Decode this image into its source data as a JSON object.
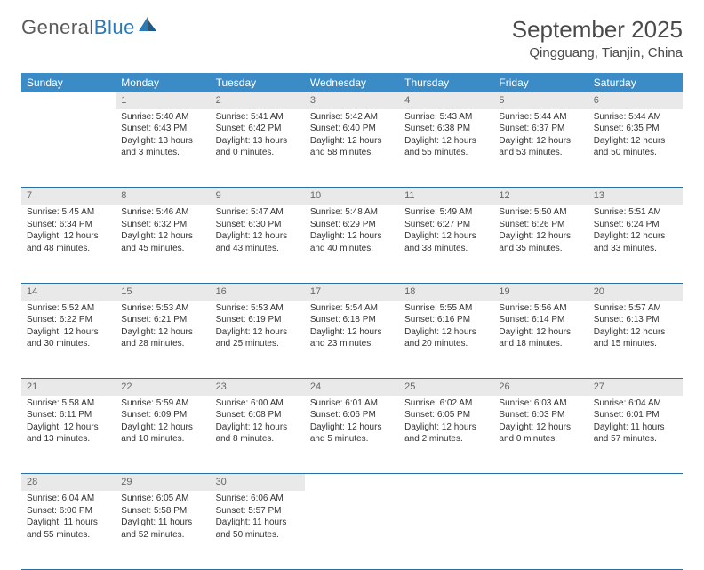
{
  "logo": {
    "text_general": "General",
    "text_blue": "Blue"
  },
  "header": {
    "month_title": "September 2025",
    "location": "Qingguang, Tianjin, China"
  },
  "colors": {
    "header_bg": "#3b8bc7",
    "header_text": "#ffffff",
    "daynum_bg": "#e9e9e9",
    "daynum_text": "#666666",
    "row_divider": "#2a6fa0",
    "body_text": "#333333",
    "logo_gray": "#5a5a5a",
    "logo_blue": "#2a7ab8"
  },
  "weekdays": [
    "Sunday",
    "Monday",
    "Tuesday",
    "Wednesday",
    "Thursday",
    "Friday",
    "Saturday"
  ],
  "weeks": [
    [
      null,
      {
        "d": "1",
        "sr": "Sunrise: 5:40 AM",
        "ss": "Sunset: 6:43 PM",
        "dl1": "Daylight: 13 hours",
        "dl2": "and 3 minutes."
      },
      {
        "d": "2",
        "sr": "Sunrise: 5:41 AM",
        "ss": "Sunset: 6:42 PM",
        "dl1": "Daylight: 13 hours",
        "dl2": "and 0 minutes."
      },
      {
        "d": "3",
        "sr": "Sunrise: 5:42 AM",
        "ss": "Sunset: 6:40 PM",
        "dl1": "Daylight: 12 hours",
        "dl2": "and 58 minutes."
      },
      {
        "d": "4",
        "sr": "Sunrise: 5:43 AM",
        "ss": "Sunset: 6:38 PM",
        "dl1": "Daylight: 12 hours",
        "dl2": "and 55 minutes."
      },
      {
        "d": "5",
        "sr": "Sunrise: 5:44 AM",
        "ss": "Sunset: 6:37 PM",
        "dl1": "Daylight: 12 hours",
        "dl2": "and 53 minutes."
      },
      {
        "d": "6",
        "sr": "Sunrise: 5:44 AM",
        "ss": "Sunset: 6:35 PM",
        "dl1": "Daylight: 12 hours",
        "dl2": "and 50 minutes."
      }
    ],
    [
      {
        "d": "7",
        "sr": "Sunrise: 5:45 AM",
        "ss": "Sunset: 6:34 PM",
        "dl1": "Daylight: 12 hours",
        "dl2": "and 48 minutes."
      },
      {
        "d": "8",
        "sr": "Sunrise: 5:46 AM",
        "ss": "Sunset: 6:32 PM",
        "dl1": "Daylight: 12 hours",
        "dl2": "and 45 minutes."
      },
      {
        "d": "9",
        "sr": "Sunrise: 5:47 AM",
        "ss": "Sunset: 6:30 PM",
        "dl1": "Daylight: 12 hours",
        "dl2": "and 43 minutes."
      },
      {
        "d": "10",
        "sr": "Sunrise: 5:48 AM",
        "ss": "Sunset: 6:29 PM",
        "dl1": "Daylight: 12 hours",
        "dl2": "and 40 minutes."
      },
      {
        "d": "11",
        "sr": "Sunrise: 5:49 AM",
        "ss": "Sunset: 6:27 PM",
        "dl1": "Daylight: 12 hours",
        "dl2": "and 38 minutes."
      },
      {
        "d": "12",
        "sr": "Sunrise: 5:50 AM",
        "ss": "Sunset: 6:26 PM",
        "dl1": "Daylight: 12 hours",
        "dl2": "and 35 minutes."
      },
      {
        "d": "13",
        "sr": "Sunrise: 5:51 AM",
        "ss": "Sunset: 6:24 PM",
        "dl1": "Daylight: 12 hours",
        "dl2": "and 33 minutes."
      }
    ],
    [
      {
        "d": "14",
        "sr": "Sunrise: 5:52 AM",
        "ss": "Sunset: 6:22 PM",
        "dl1": "Daylight: 12 hours",
        "dl2": "and 30 minutes."
      },
      {
        "d": "15",
        "sr": "Sunrise: 5:53 AM",
        "ss": "Sunset: 6:21 PM",
        "dl1": "Daylight: 12 hours",
        "dl2": "and 28 minutes."
      },
      {
        "d": "16",
        "sr": "Sunrise: 5:53 AM",
        "ss": "Sunset: 6:19 PM",
        "dl1": "Daylight: 12 hours",
        "dl2": "and 25 minutes."
      },
      {
        "d": "17",
        "sr": "Sunrise: 5:54 AM",
        "ss": "Sunset: 6:18 PM",
        "dl1": "Daylight: 12 hours",
        "dl2": "and 23 minutes."
      },
      {
        "d": "18",
        "sr": "Sunrise: 5:55 AM",
        "ss": "Sunset: 6:16 PM",
        "dl1": "Daylight: 12 hours",
        "dl2": "and 20 minutes."
      },
      {
        "d": "19",
        "sr": "Sunrise: 5:56 AM",
        "ss": "Sunset: 6:14 PM",
        "dl1": "Daylight: 12 hours",
        "dl2": "and 18 minutes."
      },
      {
        "d": "20",
        "sr": "Sunrise: 5:57 AM",
        "ss": "Sunset: 6:13 PM",
        "dl1": "Daylight: 12 hours",
        "dl2": "and 15 minutes."
      }
    ],
    [
      {
        "d": "21",
        "sr": "Sunrise: 5:58 AM",
        "ss": "Sunset: 6:11 PM",
        "dl1": "Daylight: 12 hours",
        "dl2": "and 13 minutes."
      },
      {
        "d": "22",
        "sr": "Sunrise: 5:59 AM",
        "ss": "Sunset: 6:09 PM",
        "dl1": "Daylight: 12 hours",
        "dl2": "and 10 minutes."
      },
      {
        "d": "23",
        "sr": "Sunrise: 6:00 AM",
        "ss": "Sunset: 6:08 PM",
        "dl1": "Daylight: 12 hours",
        "dl2": "and 8 minutes."
      },
      {
        "d": "24",
        "sr": "Sunrise: 6:01 AM",
        "ss": "Sunset: 6:06 PM",
        "dl1": "Daylight: 12 hours",
        "dl2": "and 5 minutes."
      },
      {
        "d": "25",
        "sr": "Sunrise: 6:02 AM",
        "ss": "Sunset: 6:05 PM",
        "dl1": "Daylight: 12 hours",
        "dl2": "and 2 minutes."
      },
      {
        "d": "26",
        "sr": "Sunrise: 6:03 AM",
        "ss": "Sunset: 6:03 PM",
        "dl1": "Daylight: 12 hours",
        "dl2": "and 0 minutes."
      },
      {
        "d": "27",
        "sr": "Sunrise: 6:04 AM",
        "ss": "Sunset: 6:01 PM",
        "dl1": "Daylight: 11 hours",
        "dl2": "and 57 minutes."
      }
    ],
    [
      {
        "d": "28",
        "sr": "Sunrise: 6:04 AM",
        "ss": "Sunset: 6:00 PM",
        "dl1": "Daylight: 11 hours",
        "dl2": "and 55 minutes."
      },
      {
        "d": "29",
        "sr": "Sunrise: 6:05 AM",
        "ss": "Sunset: 5:58 PM",
        "dl1": "Daylight: 11 hours",
        "dl2": "and 52 minutes."
      },
      {
        "d": "30",
        "sr": "Sunrise: 6:06 AM",
        "ss": "Sunset: 5:57 PM",
        "dl1": "Daylight: 11 hours",
        "dl2": "and 50 minutes."
      },
      null,
      null,
      null,
      null
    ]
  ]
}
